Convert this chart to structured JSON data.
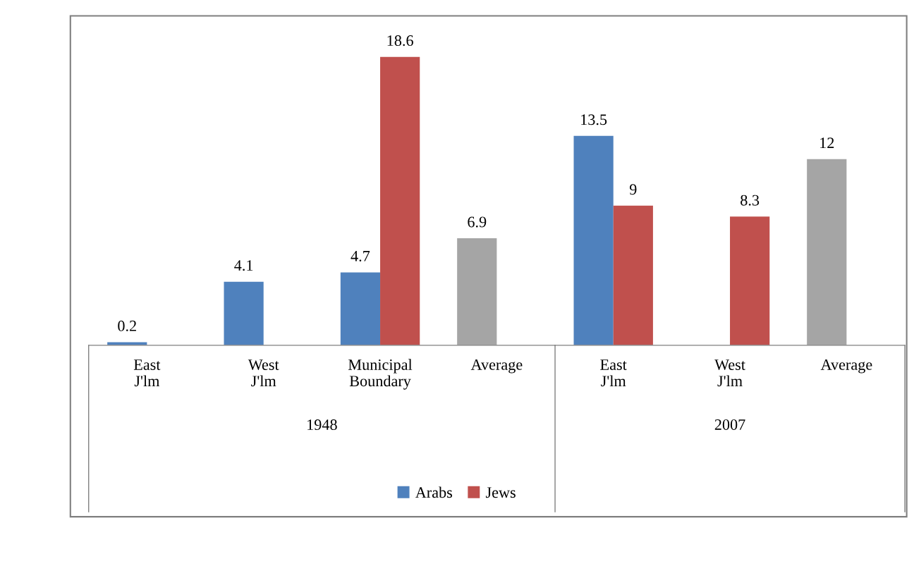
{
  "chart_data": [
    {
      "type": "bar",
      "xlabel": "1948",
      "categories": [
        "East J'lm",
        "West J'lm",
        "Municipal Boundary",
        "Average"
      ],
      "data_labels": true,
      "legend": "bottom",
      "grid": false,
      "series": [
        {
          "name": "Arabs",
          "color": "#4f81bd",
          "colors": [
            "#4f81bd",
            "#4f81bd",
            "#4f81bd",
            "#a5a5a5"
          ],
          "values": [
            0.2,
            4.1,
            4.7,
            6.9
          ]
        },
        {
          "name": "Jews",
          "color": "#c0504d",
          "values": [
            null,
            null,
            18.6,
            null
          ]
        }
      ]
    },
    {
      "type": "bar",
      "xlabel": "2007",
      "categories": [
        "East J'lm",
        "West J'lm",
        "Average"
      ],
      "data_labels": true,
      "grid": false,
      "series": [
        {
          "name": "Arabs",
          "color": "#4f81bd",
          "colors": [
            "#4f81bd",
            "#4f81bd",
            "#a5a5a5"
          ],
          "values": [
            13.5,
            null,
            12
          ]
        },
        {
          "name": "Jews",
          "color": "#c0504d",
          "values": [
            9,
            8.3,
            null
          ]
        }
      ]
    }
  ]
}
